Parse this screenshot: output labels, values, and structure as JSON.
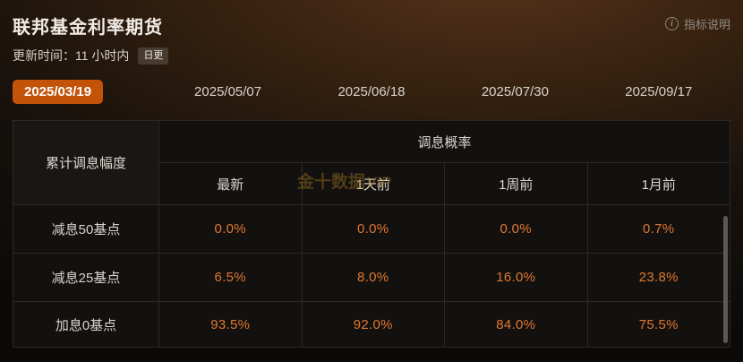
{
  "colors": {
    "tab_selected_bg": "#c25309",
    "value_text": "#e0772e",
    "page_glow": "#56331d",
    "table_line": "#2c2825"
  },
  "header": {
    "title": "联邦基金利率期货",
    "info_label": "指标说明",
    "info_icon_glyph": "i"
  },
  "update": {
    "label": "更新时间：",
    "value": "11 小时内",
    "badge": "日更"
  },
  "tabs": [
    {
      "label": "2025/03/19",
      "selected": true
    },
    {
      "label": "2025/05/07",
      "selected": false
    },
    {
      "label": "2025/06/18",
      "selected": false
    },
    {
      "label": "2025/07/30",
      "selected": false
    },
    {
      "label": "2025/09/17",
      "selected": false
    }
  ],
  "table": {
    "corner_header": "累计调息幅度",
    "group_header": "调息概率",
    "columns": [
      "最新",
      "1天前",
      "1周前",
      "1月前"
    ],
    "rows": [
      {
        "label": "减息50基点",
        "values": [
          "0.0%",
          "0.0%",
          "0.0%",
          "0.7%"
        ]
      },
      {
        "label": "减息25基点",
        "values": [
          "6.5%",
          "8.0%",
          "16.0%",
          "23.8%"
        ]
      },
      {
        "label": "加息0基点",
        "values": [
          "93.5%",
          "92.0%",
          "84.0%",
          "75.5%"
        ]
      }
    ]
  },
  "watermark": {
    "brand": "金十数据",
    "suffix": "VIP"
  }
}
